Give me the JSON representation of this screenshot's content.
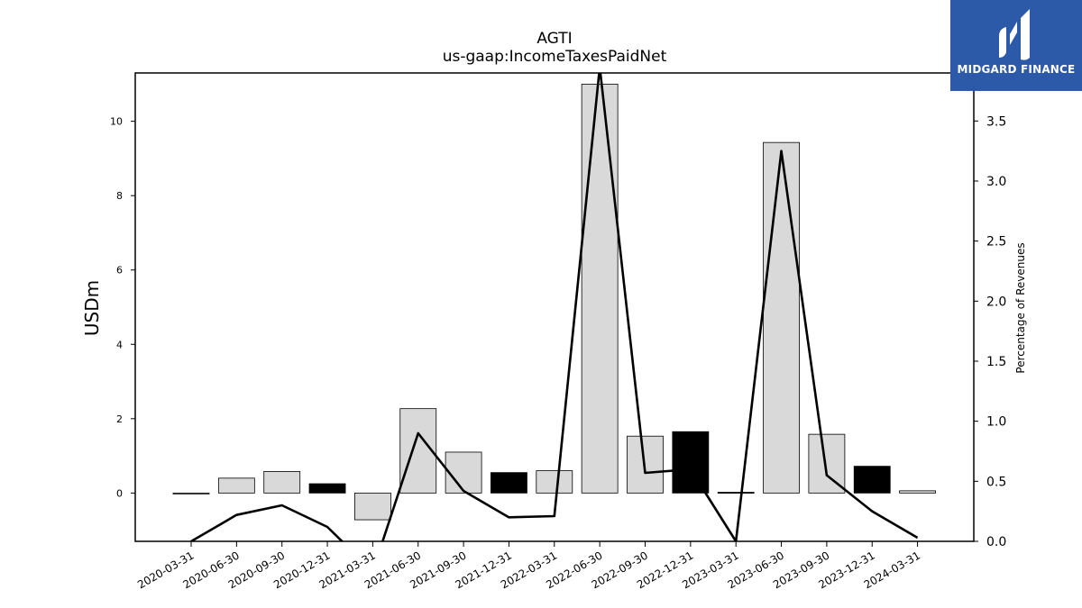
{
  "chart_data": {
    "type": "bar",
    "title": "AGTI",
    "subtitle": "us-gaap:IncomeTaxesPaidNet",
    "ylabel": "USDm",
    "y2label": "Percentage of Revenues",
    "categories": [
      "2020-03-31",
      "2020-06-30",
      "2020-09-30",
      "2020-12-31",
      "2021-03-31",
      "2021-06-30",
      "2021-09-30",
      "2021-12-31",
      "2022-03-31",
      "2022-06-30",
      "2022-09-30",
      "2022-12-31",
      "2023-03-31",
      "2023-06-30",
      "2023-09-30",
      "2023-12-31",
      "2024-03-31"
    ],
    "series": [
      {
        "type": "bar",
        "axis": "left",
        "values": [
          -0.02,
          0.4,
          0.58,
          0.25,
          -0.72,
          2.27,
          1.1,
          0.55,
          0.6,
          11.0,
          1.53,
          1.65,
          0.02,
          9.43,
          1.58,
          0.72,
          0.06
        ],
        "colors": [
          "light",
          "light",
          "light",
          "dark",
          "light",
          "light",
          "light",
          "dark",
          "light",
          "light",
          "light",
          "dark",
          "dark",
          "light",
          "light",
          "dark",
          "light"
        ]
      },
      {
        "type": "line",
        "axis": "right",
        "values": [
          0.0,
          0.22,
          0.3,
          0.12,
          -0.25,
          0.9,
          0.42,
          0.2,
          0.21,
          3.95,
          0.57,
          0.6,
          0.0,
          3.25,
          0.55,
          0.25,
          0.03
        ]
      }
    ],
    "ylim": [
      -1.3,
      11.3
    ],
    "y2lim": [
      0.0,
      3.9
    ],
    "yticks": [
      0,
      2,
      4,
      6,
      8,
      10
    ],
    "y2ticks": [
      "0.0",
      "0.5",
      "1.0",
      "1.5",
      "2.0",
      "2.5",
      "3.0",
      "3.5"
    ],
    "grid": false,
    "colors": {
      "light": "#d9d9d9",
      "dark": "#000000",
      "line": "#000000"
    }
  },
  "logo": {
    "text": "MIDGARD FINANCE",
    "background": "#2c5aa8"
  }
}
